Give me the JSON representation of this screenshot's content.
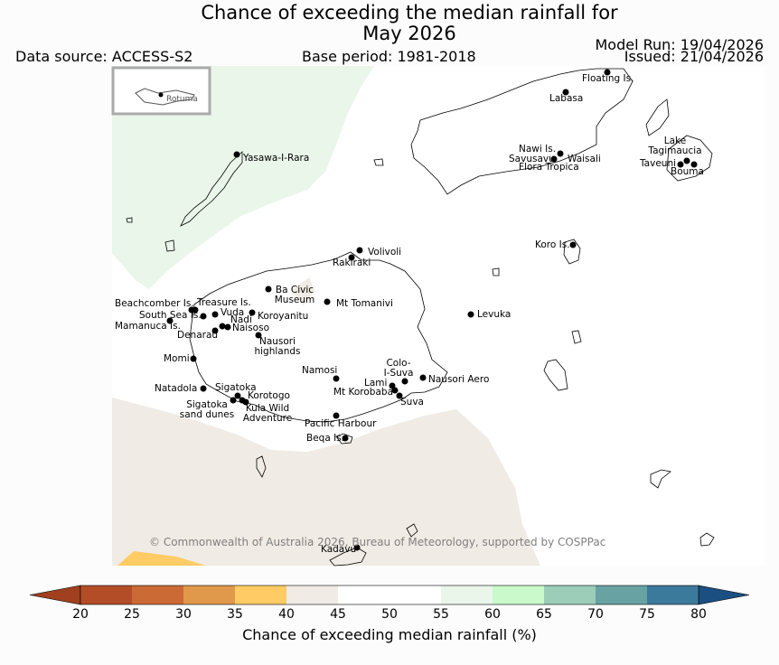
{
  "title": {
    "line1": "Chance of exceeding the median rainfall for",
    "line2": "May 2026"
  },
  "header": {
    "data_source": "Data source: ACCESS-S2",
    "base_period": "Base period: 1981-2018",
    "model_run": "Model Run: 19/04/2026",
    "issued": "Issued: 21/04/2026"
  },
  "inset": {
    "label": "Rotuma"
  },
  "copyright": "© Commonwealth of Australia 2026, Bureau of Meteorology, supported by COSPPac",
  "places": {
    "floating_is": "Floating Is.",
    "labasa": "Labasa",
    "yasawa": "Yasawa-I-Rara",
    "nawi": "Nawi Is.",
    "savusavu": "Savusavu",
    "flora": "Flora Tropica",
    "waisali": "Waisali",
    "lake": "Lake\nTagimaucia",
    "taveuni": "Taveuni",
    "bouma": "Bouma",
    "koro": "Koro Is.",
    "volivoli": "Volivoli",
    "rakiraki": "Rakiraki",
    "ba": "Ba Civic\nMuseum",
    "tomanivi": "Mt Tomanivi",
    "levuka": "Levuka",
    "beachcomber": "Beachcomber Is.",
    "treasure": "Treasure Is.",
    "south_sea": "South Sea Is.",
    "vuda": "Vuda",
    "koroyanitu": "Koroyanitu",
    "mamanuca": "Mamanuca Is.",
    "nadi": "Nadi",
    "naisoso": "Naisoso",
    "denarau": "Denarau",
    "nausori_high": "Nausori\nhighlands",
    "momi": "Momi",
    "colo": "Colo-\nI-Suva",
    "namosi": "Namosi",
    "nausori_aero": "Nausori Aero",
    "lami": "Lami",
    "korobaba": "Mt Korobaba",
    "suva": "Suva",
    "natadola": "Natadola",
    "sigatoka": "Sigatoka",
    "korotogo": "Korotogo",
    "sig_dunes": "Sigatoka\nsand dunes",
    "kula": "Kula Wild\nAdventure",
    "pacific": "Pacific Harbour",
    "beqa": "Beqa Is.",
    "kadavu": "Kadavu"
  },
  "colorbar": {
    "title": "Chance of exceeding median rainfall (%)",
    "ticks": [
      "20",
      "25",
      "30",
      "35",
      "40",
      "45",
      "50",
      "55",
      "60",
      "65",
      "70",
      "75",
      "80"
    ],
    "colors": [
      "#a0401f",
      "#b34d27",
      "#cc6a35",
      "#e0984a",
      "#fecb65",
      "#f0ebe4",
      "#ffffff",
      "#ffffff",
      "#eaf6ea",
      "#caf9cc",
      "#9ccdb9",
      "#68a2a3",
      "#3c7a9b",
      "#1b4f82"
    ]
  },
  "map_fill": {
    "dry": "#f0ebe4",
    "wet": "#eaf6ea",
    "drier": "#fecb65"
  }
}
